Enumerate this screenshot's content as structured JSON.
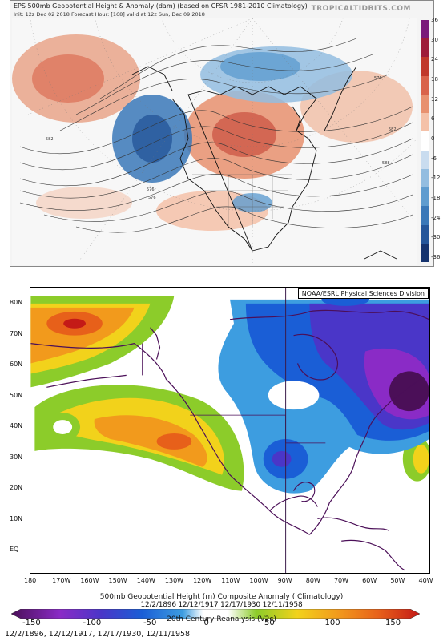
{
  "top": {
    "title": "EPS 500mb Geopotential Height & Anomaly (dam) (based on CFSR 1981-2010 Climatology)",
    "subtitle": "Init: 12z Dec 02 2018   Forecast Hour: [168]   valid at 12z Sun, Dec 09 2018",
    "brand": "TROPICALTIDBITS.COM",
    "colorbar_labels": [
      "36",
      "30",
      "24",
      "18",
      "12",
      "6",
      "0",
      "-6",
      "-12",
      "-18",
      "-24",
      "-30",
      "-36"
    ],
    "colorbar_colors": [
      "#7a1a7a",
      "#9e1d3a",
      "#c0392b",
      "#d9634a",
      "#e8916f",
      "#f4c1a8",
      "#ffffff",
      "#c9dcef",
      "#93bde0",
      "#5f9ccf",
      "#3a78b8",
      "#25569a",
      "#15336e"
    ],
    "contour_labels": [
      "582",
      "576",
      "576",
      "588",
      "582",
      "576"
    ]
  },
  "bottom": {
    "noaa_label": "NOAA/ESRL Physical Sciences Division",
    "lat_labels": [
      "80N",
      "70N",
      "60N",
      "50N",
      "40N",
      "30N",
      "20N",
      "10N",
      "EQ"
    ],
    "lon_labels": [
      "180",
      "170W",
      "160W",
      "150W",
      "140W",
      "130W",
      "120W",
      "110W",
      "100W",
      "90W",
      "80W",
      "70W",
      "60W",
      "50W",
      "40W"
    ],
    "title": "500mb Geopotential Height (m) Composite Anomaly ( Climatology)",
    "dates_overlay": "12/2/1896 12/12/1917 12/17/1930 12/11/1958",
    "reanalysis": "20th Century Reanalysis (V2c)",
    "colorbar_labels": [
      "-150",
      "-100",
      "-50",
      "0",
      "50",
      "100",
      "150"
    ],
    "footer": "12/2/1896, 12/12/1917, 12/17/1930, 12/11/1958"
  }
}
